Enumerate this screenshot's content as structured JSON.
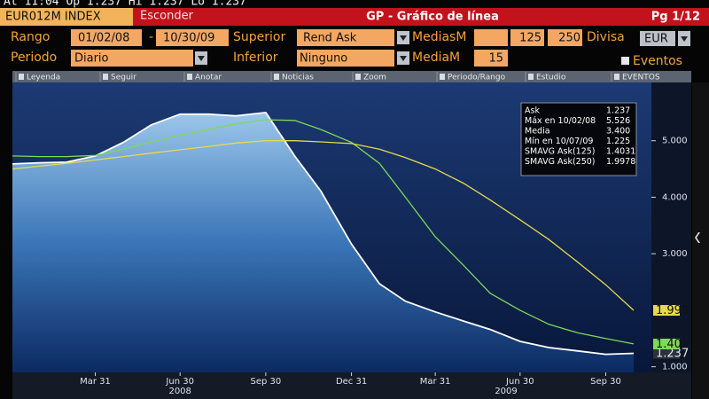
{
  "ticker_line": "At 11:04  Op 1.237  Hi 1.237  Lo 1.237",
  "header": {
    "security": "EUR012M INDEX",
    "hide_button": "Esconder",
    "title": "GP - Gráfico de línea",
    "page": "Pg 1/12"
  },
  "form": {
    "range_label": "Rango",
    "range_start": "01/02/08",
    "range_sep": "-",
    "range_end": "10/30/09",
    "upper_label": "Superior",
    "upper_value": "Rend Ask",
    "ma_label": "MediasM",
    "ma_1": "125",
    "ma_2": "250",
    "currency_label": "Divisa",
    "currency": "EUR",
    "period_label": "Periodo",
    "period": "Diario",
    "lower_label": "Inferior",
    "lower_value": "Ninguno",
    "ma_lower_label": "MediaM",
    "ma_lower": "15",
    "events_label": "Eventos"
  },
  "toolbar": [
    "Leyenda",
    "Seguir",
    "Anotar",
    "Noticias",
    "Zoom",
    "Periodo/Rango",
    "Estudio",
    "EVENTOS"
  ],
  "legend_box": {
    "ask_value": "1.237",
    "stats": [
      [
        "Máx en 10/02/08",
        "5.526"
      ],
      [
        "Media",
        "3.400"
      ],
      [
        "Mín en 10/07/09",
        "1.225"
      ]
    ],
    "ma_values": [
      "1.4031",
      "1.9978"
    ]
  },
  "chart_data": {
    "type": "line",
    "x": [
      "2008-01-02",
      "2008-01-31",
      "2008-02-29",
      "2008-03-31",
      "2008-04-30",
      "2008-05-30",
      "2008-06-30",
      "2008-07-31",
      "2008-08-29",
      "2008-09-30",
      "2008-10-31",
      "2008-11-28",
      "2008-12-31",
      "2009-01-30",
      "2009-02-27",
      "2009-03-31",
      "2009-04-30",
      "2009-05-29",
      "2009-06-30",
      "2009-07-31",
      "2009-08-31",
      "2009-09-30",
      "2009-10-30"
    ],
    "series": [
      {
        "name": "Ask",
        "color": "#ffffff",
        "values": [
          4.59,
          4.61,
          4.62,
          4.73,
          4.97,
          5.28,
          5.47,
          5.47,
          5.44,
          5.5,
          4.73,
          4.11,
          3.17,
          2.47,
          2.16,
          1.97,
          1.81,
          1.66,
          1.45,
          1.34,
          1.28,
          1.22,
          1.237
        ]
      },
      {
        "name": "SMAVG Ask(125)",
        "color": "#7ed957",
        "values": [
          4.73,
          4.72,
          4.72,
          4.74,
          4.85,
          4.98,
          5.1,
          5.2,
          5.3,
          5.37,
          5.36,
          5.2,
          4.97,
          4.6,
          4.0,
          3.3,
          2.8,
          2.3,
          2.0,
          1.75,
          1.6,
          1.5,
          1.403
        ]
      },
      {
        "name": "SMAVG Ask(250)",
        "color": "#e8d94a",
        "values": [
          4.5,
          4.55,
          4.6,
          4.66,
          4.72,
          4.78,
          4.84,
          4.9,
          4.96,
          5.0,
          5.0,
          4.98,
          4.95,
          4.85,
          4.7,
          4.5,
          4.25,
          3.95,
          3.6,
          3.25,
          2.85,
          2.45,
          1.998
        ]
      }
    ],
    "xlim": [
      "2008-01-02",
      "2009-11-18"
    ],
    "xticks": [
      {
        "value": "2008-03-31",
        "label": "Mar 31"
      },
      {
        "value": "2008-06-30",
        "label": "Jun 30"
      },
      {
        "value": "2008-09-30",
        "label": "Sep 30"
      },
      {
        "value": "2008-12-31",
        "label": "Dec 31"
      },
      {
        "value": "2009-03-31",
        "label": "Mar 31"
      },
      {
        "value": "2009-06-30",
        "label": "Jun 30"
      },
      {
        "value": "2009-09-30",
        "label": "Sep 30"
      }
    ],
    "xyears": [
      {
        "value": "2008-06-30",
        "label": "2008"
      },
      {
        "value": "2009-06-15",
        "label": "2009"
      }
    ],
    "ylim": [
      0.9,
      6.0
    ],
    "yticks": [
      {
        "value": 1,
        "label": "1.000"
      },
      {
        "value": 3,
        "label": "3.000"
      },
      {
        "value": 4,
        "label": "4.000"
      },
      {
        "value": 5,
        "label": "5.000"
      }
    ],
    "y_axis_side": "right"
  }
}
